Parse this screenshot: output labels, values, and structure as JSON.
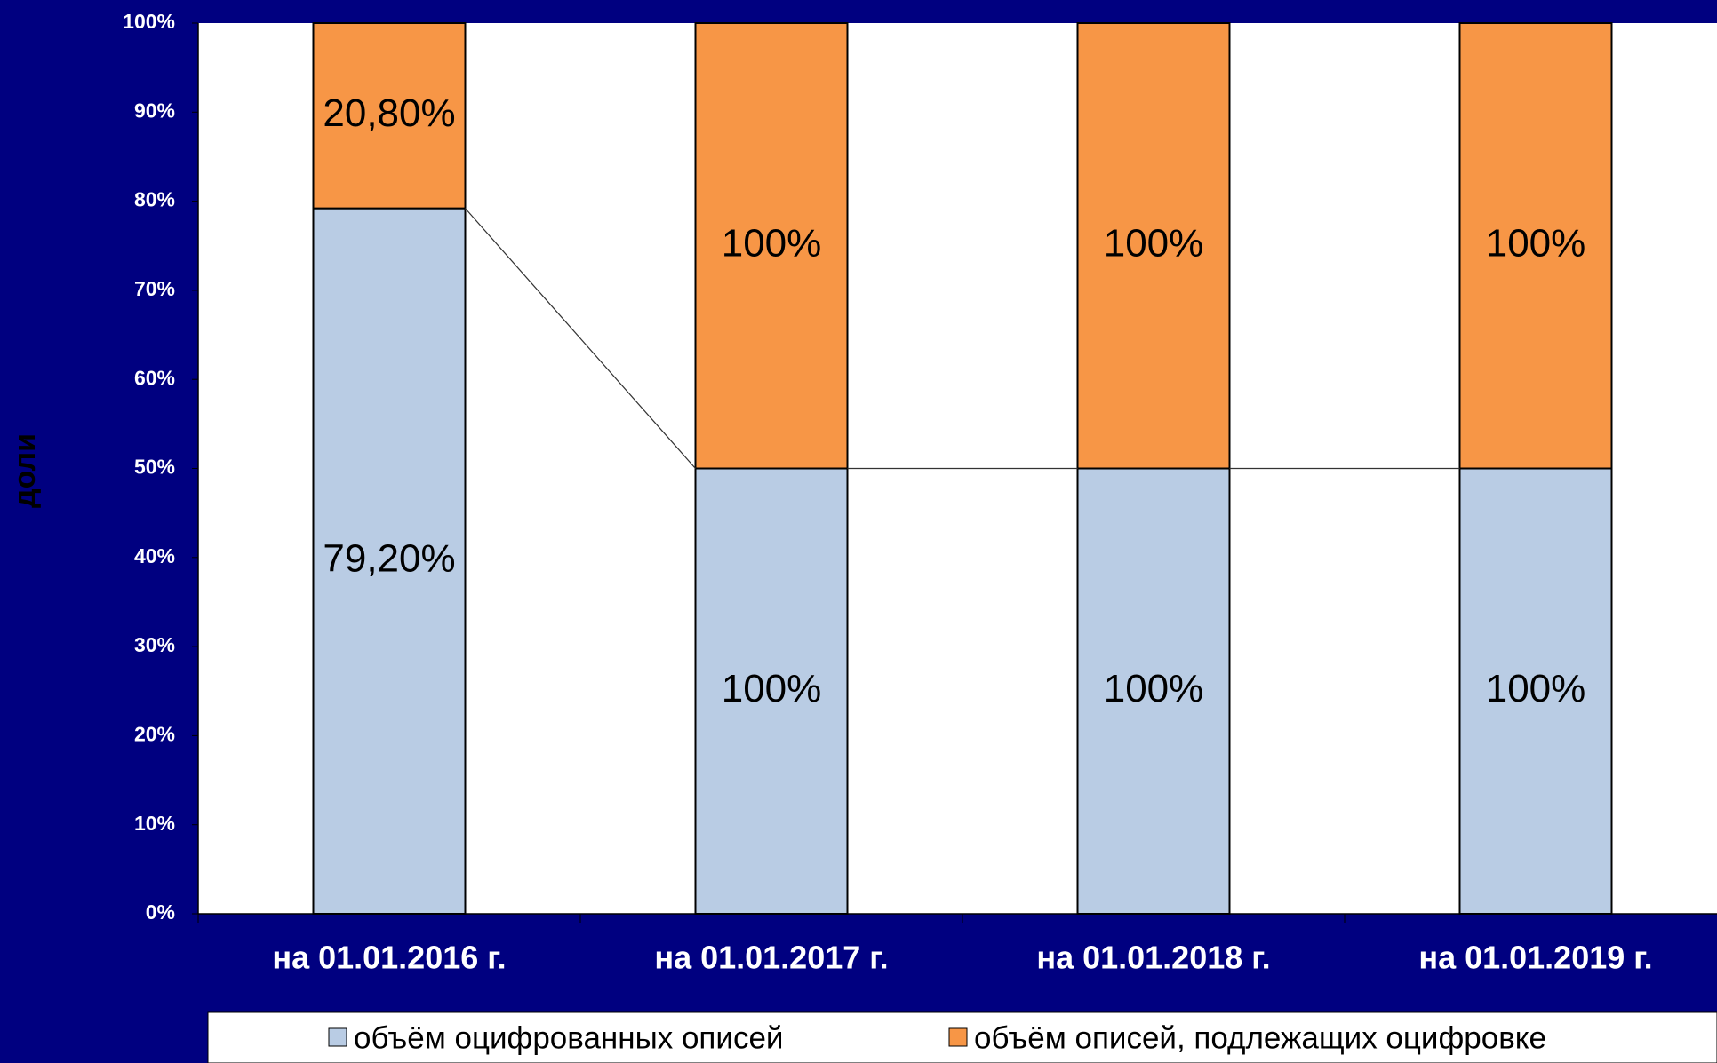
{
  "chart_data": {
    "type": "bar",
    "stacking": "percent",
    "series_lines": true,
    "y_axis_label": "доли",
    "categories": [
      "на 01.01.2016 г.",
      "на 01.01.2017 г.",
      "на 01.01.2018 г.",
      "на 01.01.2019 г."
    ],
    "series": [
      {
        "name": "объём оцифрованных описей",
        "color": "#b9cce4",
        "values": [
          79.2,
          100,
          100,
          100
        ],
        "value_labels": [
          "79,20%",
          "100%",
          "100%",
          "100%"
        ]
      },
      {
        "name": "объём описей, подлежащих оцифровке",
        "color": "#f79646",
        "values": [
          20.8,
          100,
          100,
          100
        ],
        "value_labels": [
          "20,80%",
          "100%",
          "100%",
          "100%"
        ]
      }
    ],
    "ylim": [
      0,
      100
    ],
    "yticks": [
      {
        "value": 0,
        "label": "0%"
      },
      {
        "value": 10,
        "label": "10%"
      },
      {
        "value": 20,
        "label": "20%"
      },
      {
        "value": 30,
        "label": "30%"
      },
      {
        "value": 40,
        "label": "40%"
      },
      {
        "value": 50,
        "label": "50%"
      },
      {
        "value": 60,
        "label": "60%"
      },
      {
        "value": 70,
        "label": "70%"
      },
      {
        "value": 80,
        "label": "80%"
      },
      {
        "value": 90,
        "label": "90%"
      },
      {
        "value": 100,
        "label": "100%"
      }
    ],
    "grid": false,
    "legend": "bottom"
  }
}
